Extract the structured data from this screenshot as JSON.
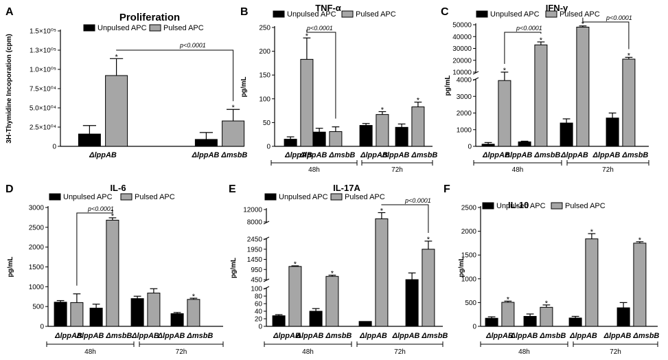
{
  "legend": {
    "unpulsed": "Unpulsed APC",
    "pulsed": "Pulsed APC"
  },
  "colors": {
    "unpulsed": "#000000",
    "pulsed": "#a6a6a6",
    "axis": "#000000"
  },
  "chart_data": [
    {
      "id": "A",
      "letter": "A",
      "type": "bar",
      "title": "Proliferation",
      "ylabel": "3H-Thymidine Incoporation (cpm)",
      "ytick_labels": [
        "0",
        "2.5×10⁰⁴",
        "5.0×10⁰⁴",
        "7.5×10⁰⁴",
        "1.0×10⁰⁵",
        "1.3×10⁰⁵",
        "1.5×10⁰⁵"
      ],
      "yticks": [
        0,
        25000,
        50000,
        75000,
        100000,
        125000,
        150000
      ],
      "ylim": [
        0,
        150000
      ],
      "categories": [
        "ΔlppAB",
        "ΔlppAB ΔmsbB"
      ],
      "groups": [],
      "series": [
        {
          "name": "Unpulsed APC",
          "values": [
            16000,
            9000
          ],
          "errors": [
            11000,
            9000
          ]
        },
        {
          "name": "Pulsed APC",
          "values": [
            92000,
            33000
          ],
          "errors": [
            22000,
            15000
          ]
        }
      ],
      "stars": [
        [
          1,
          0
        ],
        [
          1,
          1
        ]
      ],
      "significance": [
        {
          "label": "p<0.0001",
          "from": [
            1,
            0
          ],
          "to": [
            1,
            1
          ]
        }
      ]
    },
    {
      "id": "B",
      "letter": "B",
      "type": "bar",
      "title": "TNF-α",
      "ylabel": "pg/mL",
      "ytick_labels": [
        "0",
        "50",
        "100",
        "150",
        "200",
        "250"
      ],
      "yticks": [
        0,
        50,
        100,
        150,
        200,
        250
      ],
      "ylim": [
        0,
        250
      ],
      "categories": [
        "ΔlppAB",
        "ΔlppAB ΔmsbB",
        "ΔlppAB",
        "ΔlppAB ΔmsbB"
      ],
      "groups": [
        "48h",
        "72h"
      ],
      "series": [
        {
          "name": "Unpulsed APC",
          "values": [
            15,
            30,
            44,
            40
          ],
          "errors": [
            5,
            8,
            4,
            7
          ]
        },
        {
          "name": "Pulsed APC",
          "values": [
            183,
            31,
            67,
            83
          ],
          "errors": [
            45,
            10,
            6,
            10
          ]
        }
      ],
      "stars": [
        [
          1,
          0
        ],
        [
          1,
          2
        ],
        [
          1,
          3
        ]
      ],
      "significance": [
        {
          "label": "p<0.0001",
          "from": [
            1,
            0
          ],
          "to": [
            1,
            1
          ]
        }
      ]
    },
    {
      "id": "C",
      "letter": "C",
      "type": "bar",
      "title": "IFN-γ",
      "ylabel": "pg/mL",
      "ytick_labels": [
        "0",
        "1000",
        "2000",
        "3000",
        "4000",
        "10000",
        "20000",
        "30000",
        "40000",
        "50000"
      ],
      "yticks": [
        0,
        1000,
        2000,
        3000,
        4000,
        10000,
        20000,
        30000,
        40000,
        50000
      ],
      "ylim": [
        0,
        50000
      ],
      "categories": [
        "ΔlppAB",
        "ΔlppAB ΔmsbB",
        "ΔlppAB",
        "ΔlppAB ΔmsbB"
      ],
      "groups": [
        "48h",
        "72h"
      ],
      "series": [
        {
          "name": "Unpulsed APC",
          "values": [
            130,
            270,
            1400,
            1700
          ],
          "errors": [
            100,
            40,
            250,
            300
          ]
        },
        {
          "name": "Pulsed APC",
          "values": [
            3950,
            33000,
            48000,
            21000
          ],
          "errors": [
            100,
            2500,
            1000,
            1500
          ]
        }
      ],
      "stars": [
        [
          1,
          0
        ],
        [
          1,
          1
        ],
        [
          1,
          2
        ],
        [
          1,
          3
        ]
      ],
      "significance": [
        {
          "label": "p<0.0001",
          "from": [
            1,
            0
          ],
          "to": [
            1,
            1
          ]
        },
        {
          "label": "p<0.0001",
          "from": [
            1,
            2
          ],
          "to": [
            1,
            3
          ]
        }
      ]
    },
    {
      "id": "D",
      "letter": "D",
      "type": "bar",
      "title": "IL-6",
      "ylabel": "pg/mL",
      "ytick_labels": [
        "0",
        "500",
        "1000",
        "1500",
        "2000",
        "2500",
        "3000"
      ],
      "yticks": [
        0,
        500,
        1000,
        1500,
        2000,
        2500,
        3000
      ],
      "ylim": [
        0,
        3000
      ],
      "categories": [
        "ΔlppAB",
        "ΔlppAB ΔmsbB",
        "ΔlppAB",
        "ΔlppAB ΔmsbB"
      ],
      "groups": [
        "48h",
        "72h"
      ],
      "series": [
        {
          "name": "Unpulsed APC",
          "values": [
            610,
            460,
            700,
            320
          ],
          "errors": [
            40,
            100,
            60,
            30
          ]
        },
        {
          "name": "Pulsed APC",
          "values": [
            600,
            2680,
            840,
            680
          ],
          "errors": [
            220,
            60,
            110,
            30
          ]
        }
      ],
      "stars": [
        [
          1,
          1
        ],
        [
          1,
          3
        ]
      ],
      "significance": [
        {
          "label": "p<0.0001",
          "from": [
            1,
            0
          ],
          "to": [
            1,
            1
          ]
        }
      ]
    },
    {
      "id": "E",
      "letter": "E",
      "type": "bar",
      "title": "IL-17A",
      "ylabel": "pg/mL",
      "ytick_labels": [
        "0",
        "20",
        "40",
        "60",
        "80",
        "100",
        "450",
        "950",
        "1450",
        "1950",
        "2450",
        "8000",
        "12000"
      ],
      "yticks": [
        0,
        20,
        40,
        60,
        80,
        100,
        450,
        950,
        1450,
        1950,
        2450,
        8000,
        12000
      ],
      "ylim": [
        0,
        12000
      ],
      "categories": [
        "ΔlppAB",
        "ΔlppAB ΔmsbB",
        "ΔlppAB",
        "ΔlppAB ΔmsbB"
      ],
      "groups": [
        "48h",
        "72h"
      ],
      "series": [
        {
          "name": "Unpulsed APC",
          "values": [
            28,
            40,
            13,
            450
          ],
          "errors": [
            3,
            7,
            0,
            330
          ]
        },
        {
          "name": "Pulsed APC",
          "values": [
            1100,
            610,
            9000,
            1950
          ],
          "errors": [
            30,
            60,
            2000,
            400
          ]
        }
      ],
      "stars": [
        [
          1,
          0
        ],
        [
          1,
          1
        ],
        [
          1,
          2
        ],
        [
          1,
          3
        ]
      ],
      "significance": [
        {
          "label": "p<0.0001",
          "from": [
            1,
            2
          ],
          "to": [
            1,
            3
          ]
        }
      ]
    },
    {
      "id": "F",
      "letter": "F",
      "type": "bar",
      "title": "IL-10",
      "ylabel": "pg/mL",
      "ytick_labels": [
        "0",
        "500",
        "1000",
        "1500",
        "2000",
        "2500"
      ],
      "yticks": [
        0,
        500,
        1000,
        1500,
        2000,
        2500
      ],
      "ylim": [
        0,
        2500
      ],
      "categories": [
        "ΔlppAB",
        "ΔlppAB ΔmsbB",
        "ΔlppAB",
        "ΔlppAB ΔmsbB"
      ],
      "groups": [
        "48h",
        "72h"
      ],
      "series": [
        {
          "name": "Unpulsed APC",
          "values": [
            170,
            210,
            175,
            390
          ],
          "errors": [
            30,
            50,
            35,
            110
          ]
        },
        {
          "name": "Pulsed APC",
          "values": [
            505,
            400,
            1840,
            1750
          ],
          "errors": [
            25,
            50,
            110,
            30
          ]
        }
      ],
      "stars": [
        [
          1,
          0
        ],
        [
          1,
          1
        ],
        [
          1,
          2
        ],
        [
          1,
          3
        ]
      ],
      "significance": []
    }
  ]
}
